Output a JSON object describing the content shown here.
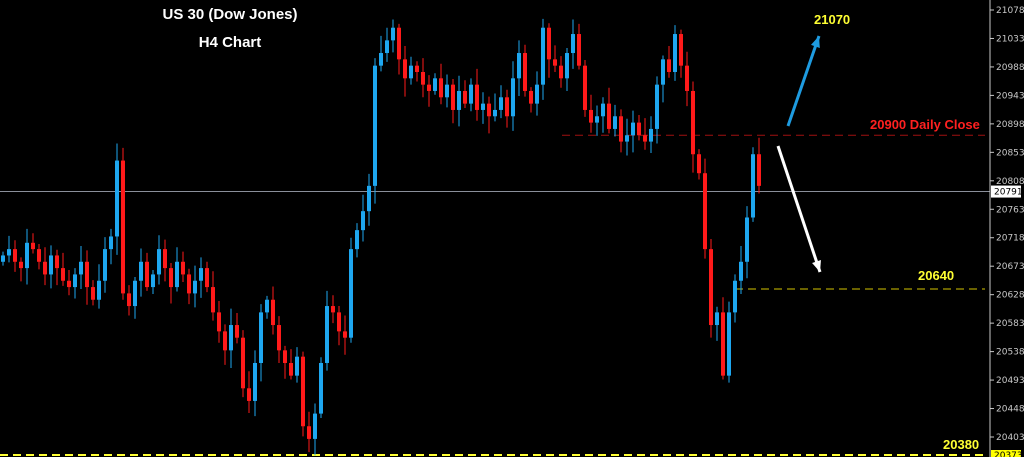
{
  "chart_data": {
    "type": "candlestick",
    "title": "US 30 (Dow Jones)",
    "subtitle": "H4 Chart",
    "ylim": [
      20373,
      21085
    ],
    "y_ticks": [
      21078,
      21033,
      20988,
      20943,
      20898,
      20853,
      20808,
      20763,
      20718,
      20673,
      20628,
      20583,
      20538,
      20493,
      20448,
      20403
    ],
    "current_price": 20791,
    "bottom_price_marker": 20373,
    "first_open": 20680,
    "closes": [
      20690,
      20700,
      20680,
      20670,
      20710,
      20700,
      20680,
      20660,
      20690,
      20670,
      20650,
      20640,
      20660,
      20680,
      20640,
      20620,
      20650,
      20700,
      20720,
      20840,
      20630,
      20610,
      20650,
      20680,
      20640,
      20660,
      20700,
      20670,
      20640,
      20680,
      20660,
      20630,
      20650,
      20670,
      20640,
      20600,
      20570,
      20540,
      20580,
      20560,
      20480,
      20460,
      20520,
      20600,
      20620,
      20580,
      20540,
      20520,
      20500,
      20530,
      20420,
      20400,
      20440,
      20520,
      20610,
      20600,
      20570,
      20560,
      20700,
      20730,
      20760,
      20800,
      20990,
      21010,
      21030,
      21050,
      21000,
      20970,
      20990,
      20980,
      20960,
      20950,
      20970,
      20940,
      20960,
      20920,
      20950,
      20930,
      20960,
      20920,
      20930,
      20910,
      20920,
      20940,
      20910,
      20970,
      21010,
      20950,
      20930,
      20960,
      21050,
      21000,
      20990,
      20970,
      21010,
      21040,
      20990,
      20920,
      20900,
      20910,
      20930,
      20890,
      20910,
      20870,
      20880,
      20900,
      20880,
      20870,
      20890,
      20960,
      21000,
      20980,
      21040,
      20990,
      20950,
      20850,
      20820,
      20700,
      20580,
      20600,
      20500,
      20600,
      20650,
      20680,
      20750,
      20850,
      20800
    ],
    "colors": {
      "up": "#1ea7f0",
      "down": "#ff1a1a",
      "background": "#000000",
      "grid_line": "#8a8f9a"
    },
    "annotations": {
      "target_up": {
        "label": "21070",
        "color": "#ffff33"
      },
      "daily_close": {
        "label": "20900 Daily Close",
        "price": 20880,
        "color": "#ff2020"
      },
      "support": {
        "label": "20640",
        "price": 20637,
        "color": "#d4c400"
      },
      "bottom": {
        "label": "20380",
        "price": 20375,
        "color": "#ffff33"
      },
      "arrow_up_color": "#1e9be0",
      "arrow_down_color": "#ffffff"
    }
  }
}
